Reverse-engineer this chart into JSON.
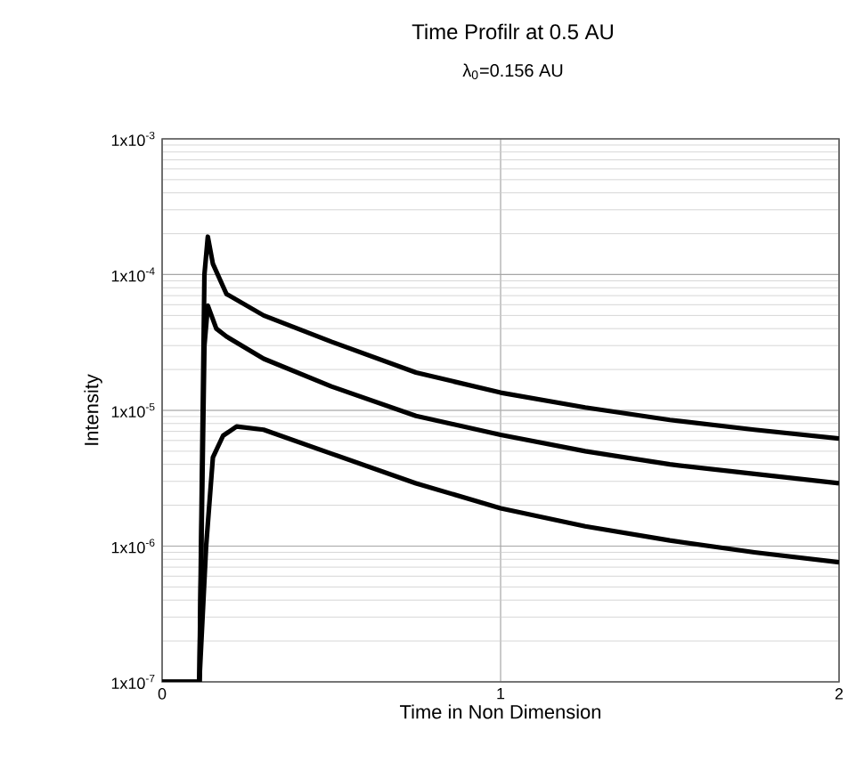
{
  "chart_data": {
    "type": "line",
    "title": "Time Profilr at 0.5 AU",
    "subtitle": "λ$_{0}$=0.156 AU",
    "xlabel": "Time in Non Dimension",
    "ylabel": "Intensity",
    "log": "y",
    "grid": true,
    "xlim": [
      0,
      2
    ],
    "xticks": [
      0,
      1,
      2
    ],
    "ylim": [
      1e-07,
      0.001
    ],
    "yticks": [
      {
        "value": 1e-07,
        "label": "1x10$^{-7}$"
      },
      {
        "value": 1e-06,
        "label": "1x10$^{-6}$"
      },
      {
        "value": 1e-05,
        "label": "1x10$^{-5}$"
      },
      {
        "value": 0.0001,
        "label": "1x10$^{-4}$"
      },
      {
        "value": 0.001,
        "label": "1x10$^{-3}$"
      }
    ],
    "series": [
      {
        "color": "#000000",
        "x": [
          0,
          0.11,
          0.125,
          0.135,
          0.15,
          0.19,
          0.3,
          0.5,
          0.75,
          1,
          1.25,
          1.5,
          1.75,
          2
        ],
        "values": [
          1e-07,
          1e-07,
          0.0001,
          0.00019,
          0.00012,
          7.2e-05,
          5e-05,
          3.2e-05,
          1.9e-05,
          1.35e-05,
          1.05e-05,
          8.5e-06,
          7.2e-06,
          6.2e-06
        ]
      },
      {
        "color": "#000000",
        "x": [
          0,
          0.11,
          0.125,
          0.135,
          0.16,
          0.19,
          0.3,
          0.5,
          0.75,
          1,
          1.25,
          1.5,
          1.75,
          2
        ],
        "values": [
          1e-07,
          1e-07,
          3e-05,
          5.9e-05,
          4e-05,
          3.5e-05,
          2.4e-05,
          1.5e-05,
          9.1e-06,
          6.6e-06,
          5e-06,
          4e-06,
          3.4e-06,
          2.9e-06
        ]
      },
      {
        "color": "#000000",
        "x": [
          0,
          0.11,
          0.13,
          0.15,
          0.18,
          0.22,
          0.3,
          0.5,
          0.75,
          1,
          1.25,
          1.5,
          1.75,
          2
        ],
        "values": [
          1e-07,
          1e-07,
          1e-06,
          4.5e-06,
          6.5e-06,
          7.6e-06,
          7.2e-06,
          4.8e-06,
          2.9e-06,
          1.9e-06,
          1.4e-06,
          1.1e-06,
          9e-07,
          7.6e-07
        ]
      }
    ]
  }
}
